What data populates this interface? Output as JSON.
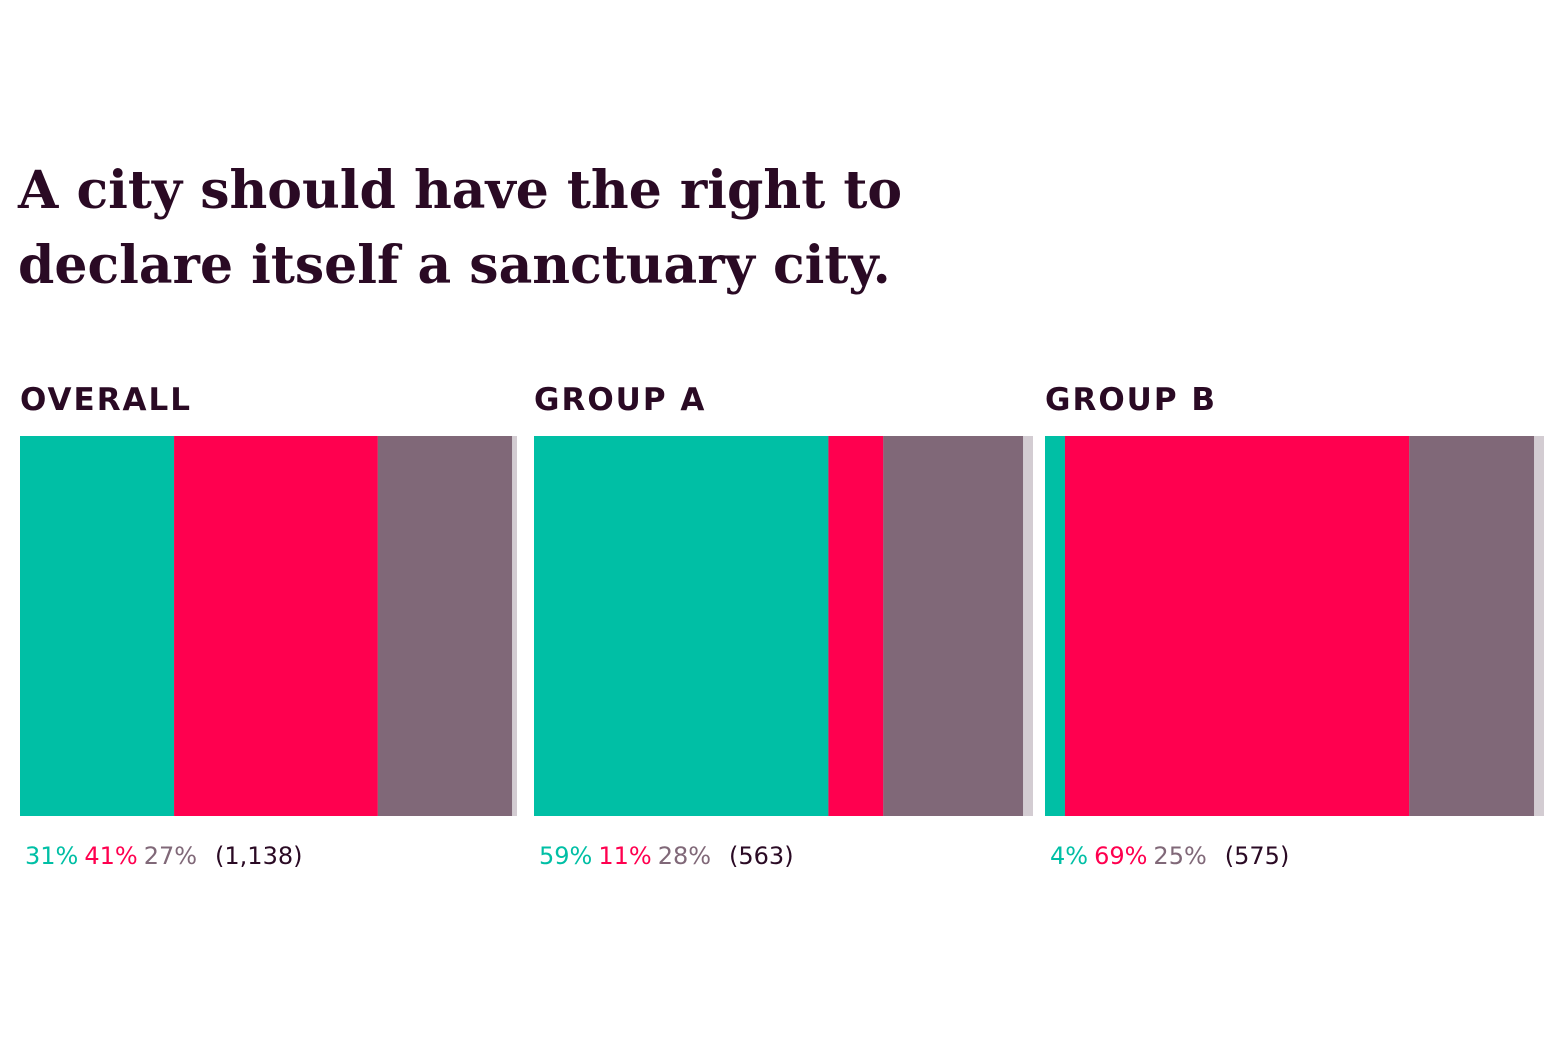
{
  "title": "A city should have the right to declare itself a sanctuary city.",
  "chart_data": [
    {
      "type": "stacked_bar",
      "title": "OVERALL",
      "xlim": [
        0,
        100
      ],
      "sample_size": "(1,138)",
      "series": [
        {
          "color": "#00bfa5",
          "values": [
            31
          ],
          "value_labels": [
            "31%"
          ]
        },
        {
          "color": "#ff004f",
          "values": [
            41
          ],
          "value_labels": [
            "41%"
          ]
        },
        {
          "color": "#806878",
          "values": [
            27
          ],
          "value_labels": [
            "27%"
          ]
        }
      ]
    },
    {
      "type": "stacked_bar",
      "title": "GROUP A",
      "xlim": [
        0,
        100
      ],
      "sample_size": "(563)",
      "series": [
        {
          "color": "#00bfa5",
          "values": [
            59
          ],
          "value_labels": [
            "59%"
          ]
        },
        {
          "color": "#ff004f",
          "values": [
            11
          ],
          "value_labels": [
            "11%"
          ]
        },
        {
          "color": "#806878",
          "values": [
            28
          ],
          "value_labels": [
            "28%"
          ]
        }
      ]
    },
    {
      "type": "stacked_bar",
      "title": "GROUP B",
      "xlim": [
        0,
        100
      ],
      "sample_size": "(575)",
      "series": [
        {
          "color": "#00bfa5",
          "values": [
            4
          ],
          "value_labels": [
            "4%"
          ]
        },
        {
          "color": "#ff004f",
          "values": [
            69
          ],
          "value_labels": [
            "69%"
          ]
        },
        {
          "color": "#806878",
          "values": [
            25
          ],
          "value_labels": [
            "25%"
          ]
        }
      ]
    }
  ]
}
